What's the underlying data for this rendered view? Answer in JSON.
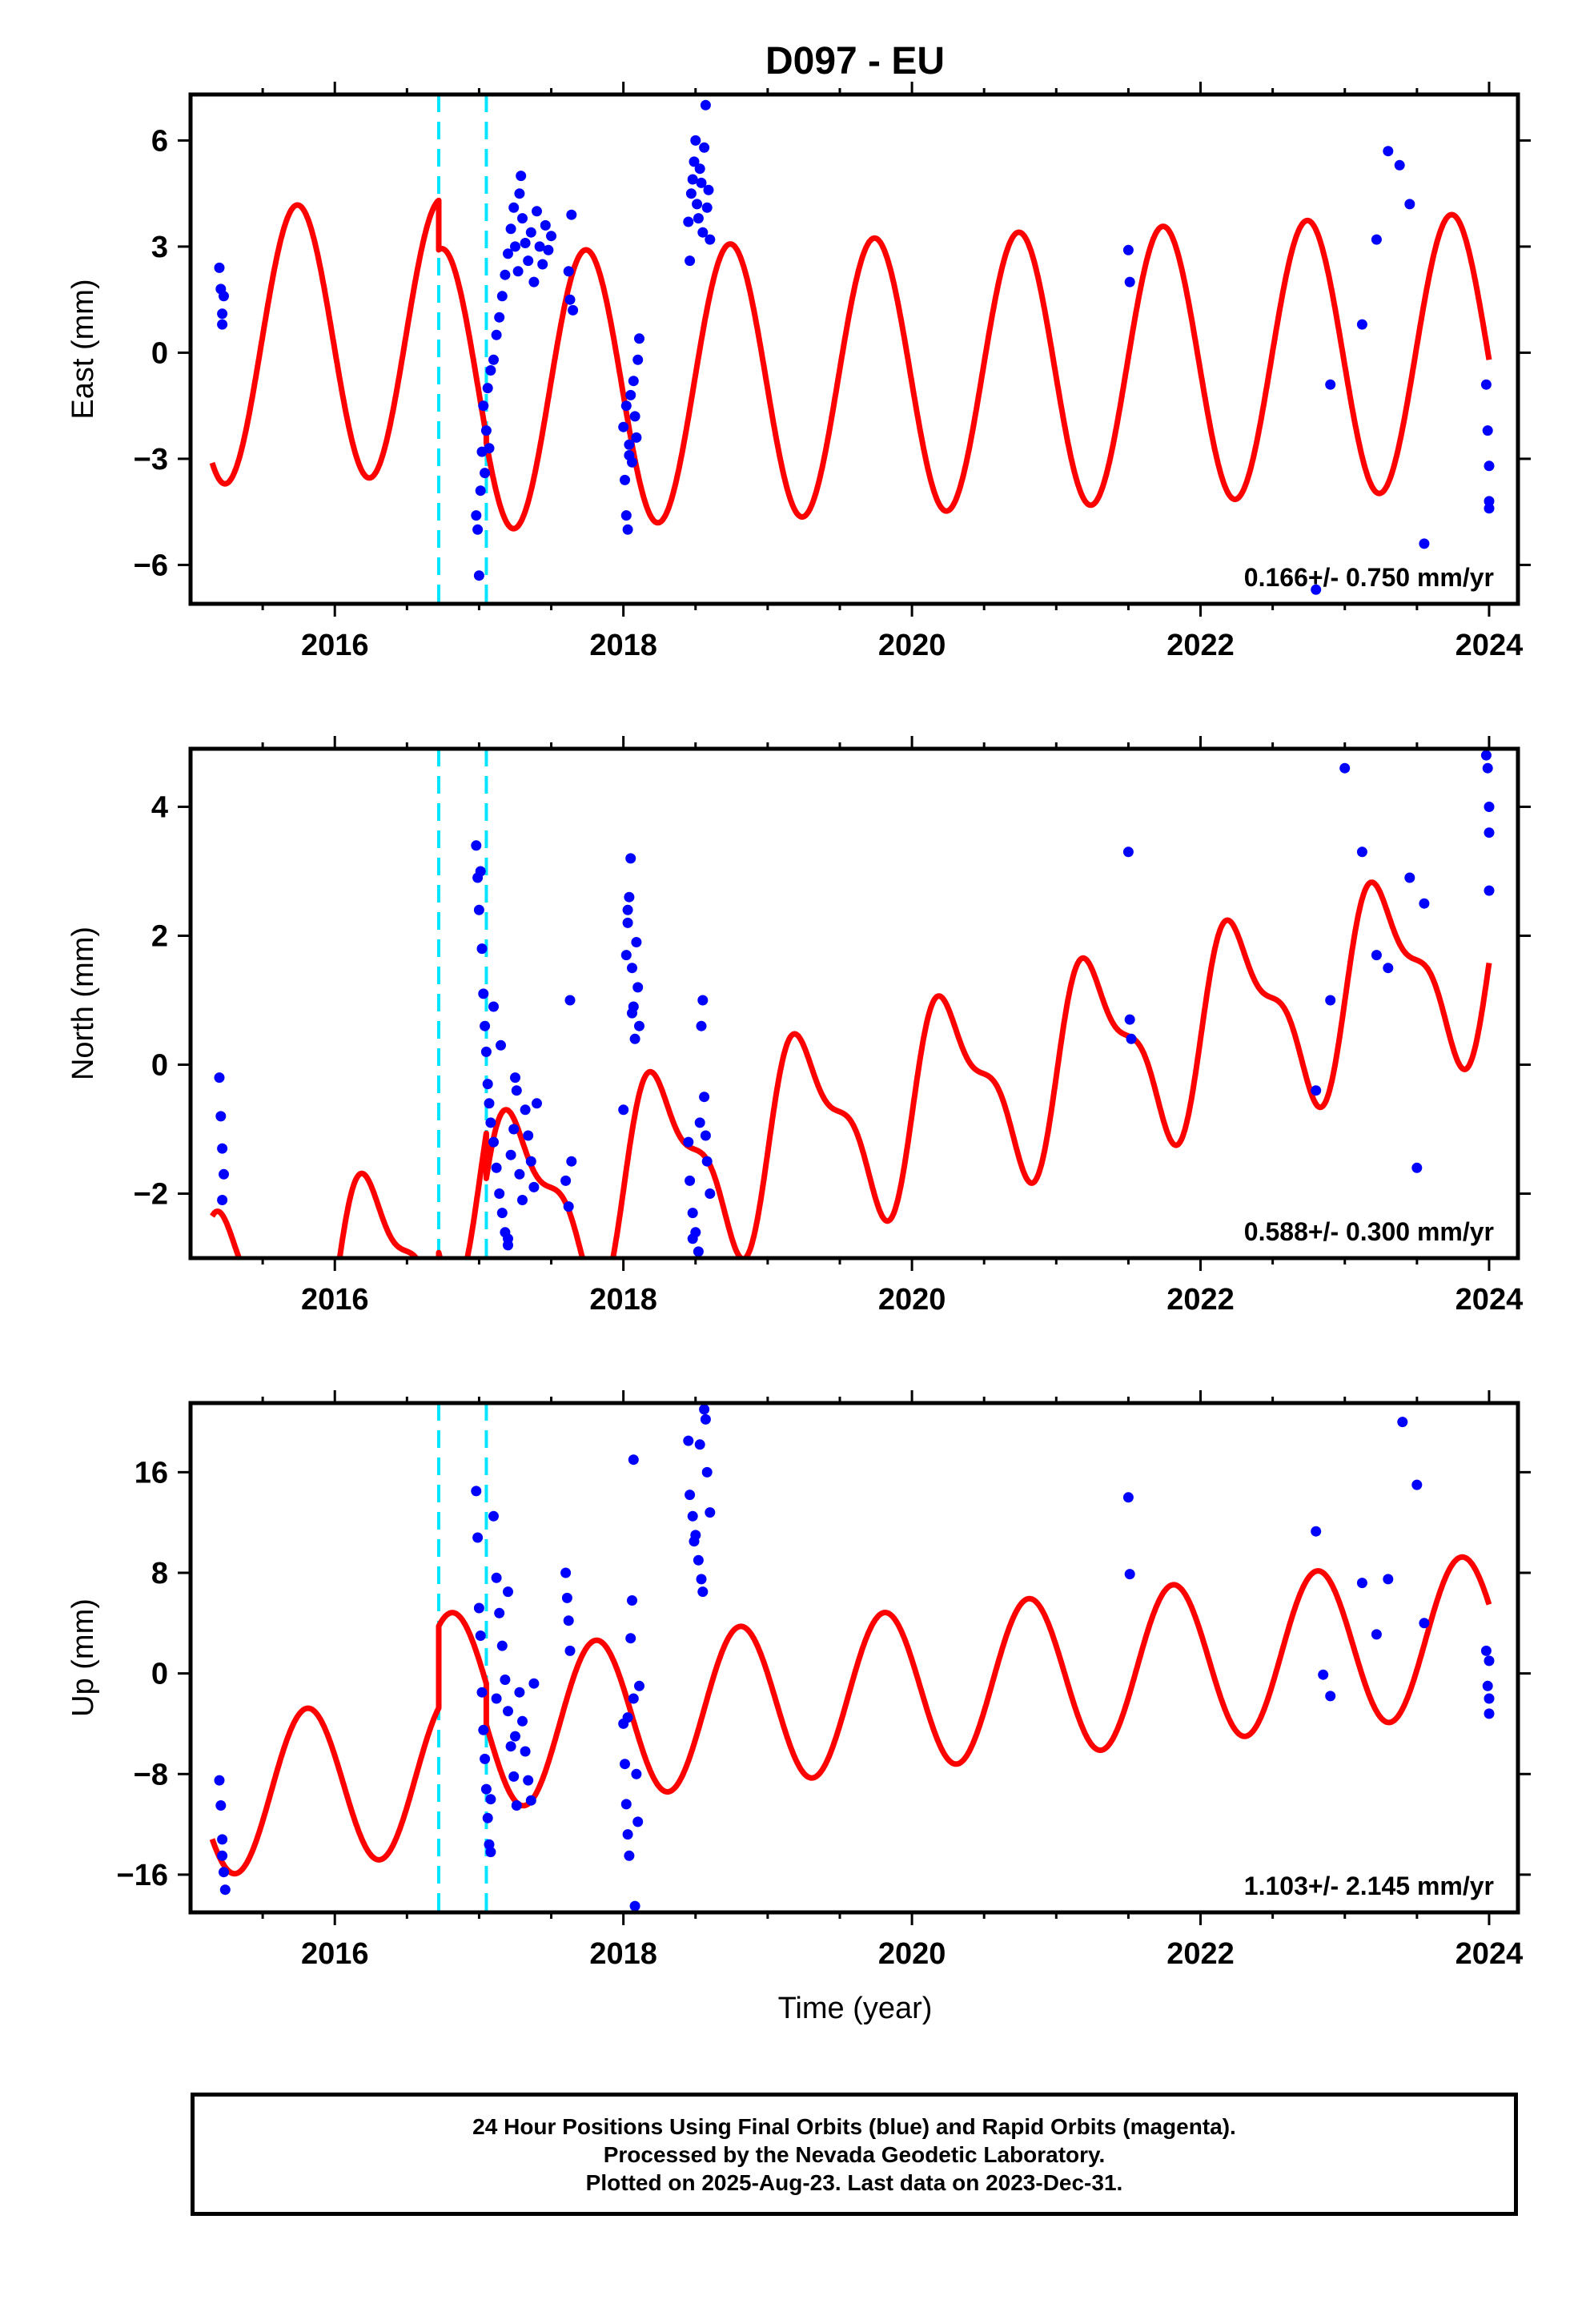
{
  "title": "D097 - EU",
  "xlabel": "Time (year)",
  "footer": {
    "line1": "24 Hour Positions Using Final Orbits (blue) and Rapid Orbits (magenta).",
    "line2": "Processed by the Nevada Geodetic Laboratory.",
    "line3": "Plotted on 2025-Aug-23. Last data on 2023-Dec-31."
  },
  "colors": {
    "points": "#0000ff",
    "model": "#ff0000",
    "event_lines": "#00e5ff"
  },
  "chart_data": [
    {
      "type": "scatter",
      "title": "D097 - EU",
      "ylabel": "East (mm)",
      "xlabel": "",
      "xlim": [
        2015.0,
        2024.2
      ],
      "ylim": [
        -7.1,
        7.3
      ],
      "xticks": [
        2016,
        2018,
        2020,
        2022,
        2024
      ],
      "yticks": [
        -6,
        -3,
        0,
        3,
        6
      ],
      "ytick_labels": [
        "−6",
        "−3",
        "0",
        "3",
        "6"
      ],
      "rate_text": "0.166+/- 0.750 mm/yr",
      "event_lines": [
        2016.72,
        2017.05
      ],
      "model": {
        "trend": 0.166,
        "offset": -0.7,
        "amp": 3.9,
        "phase": 0.49,
        "semi_amp": 0.0,
        "semi_phase": 0.0,
        "seg1_shift": 1.6,
        "seg2_shift": 0.2,
        "seg3_shift": 0.0
      },
      "x": [
        2015.2,
        2015.21,
        2015.22,
        2015.22,
        2015.23,
        2016.98,
        2016.99,
        2017.0,
        2017.01,
        2017.02,
        2017.03,
        2017.04,
        2017.05,
        2017.06,
        2017.07,
        2017.08,
        2017.1,
        2017.12,
        2017.14,
        2017.16,
        2017.18,
        2017.2,
        2017.22,
        2017.24,
        2017.25,
        2017.27,
        2017.28,
        2017.29,
        2017.3,
        2017.32,
        2017.34,
        2017.36,
        2017.38,
        2017.4,
        2017.42,
        2017.44,
        2017.46,
        2017.48,
        2017.5,
        2017.62,
        2017.63,
        2017.64,
        2017.65,
        2018.0,
        2018.01,
        2018.02,
        2018.03,
        2018.04,
        2018.05,
        2018.06,
        2018.07,
        2018.08,
        2018.09,
        2018.1,
        2018.11,
        2018.02,
        2018.04,
        2018.45,
        2018.47,
        2018.49,
        2018.5,
        2018.51,
        2018.52,
        2018.53,
        2018.54,
        2018.55,
        2018.56,
        2018.57,
        2018.58,
        2018.59,
        2018.6,
        2018.46,
        2018.48,
        2021.5,
        2021.51,
        2022.8,
        2022.9,
        2023.12,
        2023.22,
        2023.3,
        2023.38,
        2023.45,
        2023.55,
        2023.98,
        2023.99,
        2024.0,
        2024.0,
        2024.0
      ],
      "y": [
        2.4,
        1.8,
        1.1,
        0.8,
        1.6,
        -4.6,
        -5.0,
        -6.3,
        -3.9,
        -2.8,
        -1.5,
        -3.4,
        -2.2,
        -1.0,
        -2.7,
        -0.5,
        -0.2,
        0.5,
        1.0,
        1.6,
        2.2,
        2.8,
        3.5,
        4.1,
        3.0,
        2.3,
        4.5,
        5.0,
        3.8,
        3.1,
        2.6,
        3.4,
        2.0,
        4.0,
        3.0,
        2.5,
        3.6,
        2.9,
        3.3,
        2.3,
        1.5,
        3.9,
        1.2,
        -2.1,
        -3.6,
        -4.6,
        -5.0,
        -2.6,
        -1.2,
        -3.1,
        -0.8,
        -1.8,
        -2.4,
        -0.2,
        0.4,
        -1.5,
        -2.9,
        3.7,
        4.5,
        5.4,
        6.0,
        4.2,
        3.8,
        5.2,
        4.8,
        3.4,
        5.8,
        7.0,
        4.1,
        4.6,
        3.2,
        2.6,
        4.9,
        2.9,
        2.0,
        -6.7,
        -0.9,
        0.8,
        3.2,
        5.7,
        5.3,
        4.2,
        -5.4,
        -0.9,
        -2.2,
        -3.2,
        -4.2,
        -4.4
      ]
    },
    {
      "type": "scatter",
      "title": "",
      "ylabel": "North (mm)",
      "xlabel": "",
      "xlim": [
        2015.0,
        2024.2
      ],
      "ylim": [
        -3.0,
        4.9
      ],
      "xticks": [
        2016,
        2018,
        2020,
        2022,
        2024
      ],
      "yticks": [
        -2,
        0,
        2,
        4
      ],
      "ytick_labels": [
        "−2",
        "0",
        "2",
        "4"
      ],
      "rate_text": "0.588+/- 0.300 mm/yr",
      "event_lines": [
        2016.72,
        2017.05
      ],
      "model": {
        "trend": 0.588,
        "offset": -0.9,
        "amp": 1.35,
        "phase": 0.02,
        "semi_amp": 0.55,
        "semi_phase": 0.0,
        "seg1_shift": -0.4,
        "seg2_shift": 0.7,
        "seg3_shift": 0.0
      },
      "x": [
        2015.2,
        2015.21,
        2015.22,
        2015.23,
        2015.22,
        2016.98,
        2016.99,
        2017.0,
        2017.01,
        2017.02,
        2017.03,
        2017.04,
        2017.05,
        2017.06,
        2017.07,
        2017.08,
        2017.1,
        2017.12,
        2017.14,
        2017.16,
        2017.18,
        2017.2,
        2017.22,
        2017.24,
        2017.26,
        2017.28,
        2017.3,
        2017.32,
        2017.34,
        2017.36,
        2017.38,
        2017.4,
        2017.6,
        2017.62,
        2017.63,
        2017.64,
        2017.1,
        2017.15,
        2017.2,
        2017.25,
        2018.0,
        2018.02,
        2018.03,
        2018.04,
        2018.05,
        2018.06,
        2018.07,
        2018.08,
        2018.09,
        2018.1,
        2018.11,
        2018.03,
        2018.06,
        2018.45,
        2018.46,
        2018.48,
        2018.5,
        2018.52,
        2018.54,
        2018.55,
        2018.56,
        2018.57,
        2018.58,
        2018.6,
        2018.48,
        2018.53,
        2021.5,
        2021.51,
        2021.52,
        2022.8,
        2022.9,
        2023.0,
        2023.12,
        2023.22,
        2023.3,
        2023.45,
        2023.5,
        2023.55,
        2023.98,
        2023.99,
        2024.0,
        2024.0,
        2024.0
      ],
      "y": [
        -0.2,
        -0.8,
        -1.3,
        -1.7,
        -2.1,
        3.4,
        2.9,
        2.4,
        3.0,
        1.8,
        1.1,
        0.6,
        0.2,
        -0.3,
        -0.6,
        -0.9,
        -1.2,
        -1.6,
        -2.0,
        -2.3,
        -2.6,
        -2.8,
        -1.4,
        -1.0,
        -0.4,
        -1.7,
        -2.1,
        -0.7,
        -1.1,
        -1.5,
        -1.9,
        -0.6,
        -1.8,
        -2.2,
        1.0,
        -1.5,
        0.9,
        0.3,
        -2.7,
        -0.2,
        -0.7,
        1.7,
        2.2,
        2.6,
        3.2,
        1.5,
        0.9,
        0.4,
        1.9,
        1.2,
        0.6,
        2.4,
        0.8,
        -1.2,
        -1.8,
        -2.3,
        -2.6,
        -2.9,
        0.6,
        1.0,
        -0.5,
        -1.1,
        -1.5,
        -2.0,
        -2.7,
        -0.9,
        3.3,
        0.7,
        0.4,
        -0.4,
        1.0,
        4.6,
        3.3,
        1.7,
        1.5,
        2.9,
        -1.6,
        2.5,
        4.8,
        4.6,
        4.0,
        3.6,
        2.7
      ]
    },
    {
      "type": "scatter",
      "title": "",
      "ylabel": "Up (mm)",
      "xlabel": "Time (year)",
      "xlim": [
        2015.0,
        2024.2
      ],
      "ylim": [
        -19.0,
        21.5
      ],
      "xticks": [
        2016,
        2018,
        2020,
        2022,
        2024
      ],
      "yticks": [
        -16,
        -8,
        0,
        8,
        16
      ],
      "ytick_labels": [
        "−16",
        "−8",
        "0",
        "8",
        "16"
      ],
      "rate_text": "1.103+/- 2.145 mm/yr",
      "event_lines": [
        2016.72,
        2017.05
      ],
      "model": {
        "trend": 1.103,
        "offset": -1.8,
        "amp": 6.3,
        "phase": 0.56,
        "semi_amp": 0.0,
        "semi_phase": 0.0,
        "seg1_shift": -3.2,
        "seg2_shift": 3.3,
        "seg3_shift": 0.0
      },
      "x": [
        2015.2,
        2015.21,
        2015.22,
        2015.22,
        2015.23,
        2015.24,
        2016.98,
        2016.99,
        2017.0,
        2017.01,
        2017.02,
        2017.03,
        2017.04,
        2017.05,
        2017.06,
        2017.07,
        2017.08,
        2017.1,
        2017.12,
        2017.14,
        2017.16,
        2017.18,
        2017.2,
        2017.22,
        2017.24,
        2017.26,
        2017.28,
        2017.3,
        2017.32,
        2017.34,
        2017.36,
        2017.38,
        2017.6,
        2017.61,
        2017.62,
        2017.63,
        2017.08,
        2017.12,
        2017.2,
        2017.25,
        2018.0,
        2018.01,
        2018.02,
        2018.03,
        2018.04,
        2018.05,
        2018.06,
        2018.07,
        2018.08,
        2018.09,
        2018.1,
        2018.11,
        2018.03,
        2018.07,
        2018.45,
        2018.46,
        2018.48,
        2018.5,
        2018.52,
        2018.54,
        2018.55,
        2018.56,
        2018.57,
        2018.58,
        2018.6,
        2018.49,
        2018.53,
        2021.5,
        2021.51,
        2022.8,
        2022.85,
        2022.9,
        2023.12,
        2023.22,
        2023.3,
        2023.4,
        2023.5,
        2023.55,
        2023.98,
        2023.99,
        2024.0,
        2024.0,
        2024.0
      ],
      "y": [
        -8.5,
        -10.5,
        -13.2,
        -14.5,
        -15.8,
        -17.2,
        14.5,
        10.8,
        5.2,
        3.0,
        -1.5,
        -4.5,
        -6.8,
        -9.2,
        -11.5,
        -13.6,
        -10.0,
        12.5,
        7.6,
        4.8,
        2.2,
        -0.5,
        -3.0,
        -5.8,
        -8.2,
        -10.5,
        -1.5,
        -3.8,
        -6.2,
        -8.5,
        -10.1,
        -0.8,
        8.0,
        6.0,
        4.2,
        1.8,
        -14.2,
        -2.0,
        6.5,
        -5.0,
        -4.0,
        -7.2,
        -10.4,
        -12.8,
        -14.5,
        2.8,
        5.8,
        -2.0,
        -18.5,
        -8.0,
        -11.8,
        -1.0,
        -3.5,
        17.0,
        18.5,
        14.2,
        12.5,
        11.0,
        9.0,
        7.5,
        6.5,
        21.0,
        20.2,
        16.0,
        12.8,
        10.5,
        18.2,
        14.0,
        7.9,
        11.3,
        -0.1,
        -1.8,
        7.2,
        3.1,
        7.5,
        20.0,
        15.0,
        4.0,
        1.8,
        -1.0,
        -3.2,
        -2.0,
        1.0
      ]
    }
  ]
}
